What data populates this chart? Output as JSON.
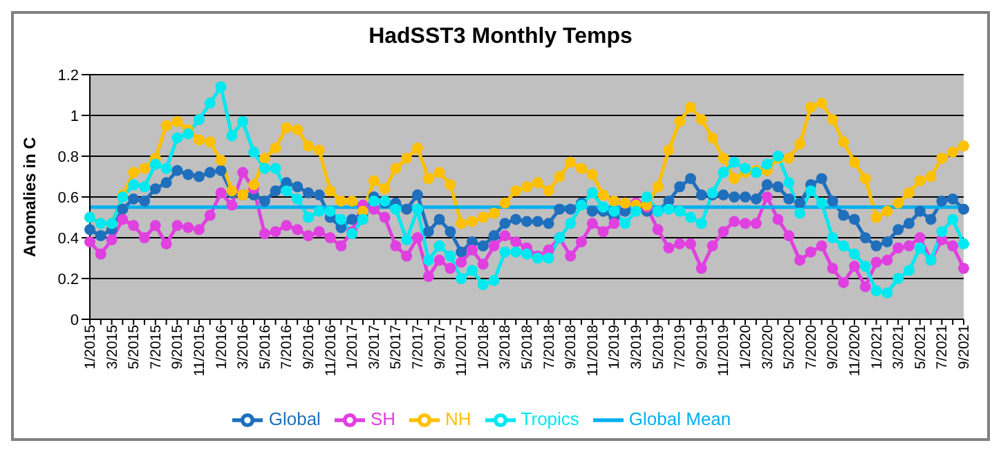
{
  "chart_data": {
    "type": "line",
    "title": "HadSST3 Monthly Temps",
    "ylabel": "Anomalies in C",
    "categories": [
      "1/2015",
      null,
      "3/2015",
      null,
      "5/2015",
      null,
      "7/2015",
      null,
      "9/2015",
      null,
      "11/2015",
      null,
      "1/2016",
      null,
      "3/2016",
      null,
      "5/2016",
      null,
      "7/2016",
      null,
      "9/2016",
      null,
      "11/2016",
      null,
      "1/2017",
      null,
      "3/2017",
      null,
      "5/2017",
      null,
      "7/2017",
      null,
      "9/2017",
      null,
      "11/2017",
      null,
      "1/2018",
      null,
      "3/2018",
      null,
      "5/2018",
      null,
      "7/2018",
      null,
      "9/2018",
      null,
      "11/2018",
      null,
      "1/2019",
      null,
      "3/2019",
      null,
      "5/2019",
      null,
      "7/2019",
      null,
      "9/2019",
      null,
      "11/2019",
      null,
      "1/2020",
      null,
      "3/2020",
      null,
      "5/2020",
      null,
      "7/2020",
      null,
      "9/2020",
      null,
      "11/2020",
      null,
      "1/2021",
      null,
      "3/2021",
      null,
      "5/2021",
      null,
      "7/2021",
      null,
      "9/2021"
    ],
    "series": [
      {
        "name": "Global",
        "color": "#1f6fbd",
        "values": [
          0.44,
          0.41,
          0.44,
          0.54,
          0.59,
          0.58,
          0.64,
          0.67,
          0.73,
          0.71,
          0.7,
          0.72,
          0.73,
          0.62,
          0.61,
          0.61,
          0.58,
          0.63,
          0.67,
          0.65,
          0.62,
          0.61,
          0.5,
          0.45,
          0.49,
          0.52,
          0.6,
          0.57,
          0.57,
          0.54,
          0.61,
          0.43,
          0.49,
          0.43,
          0.33,
          0.38,
          0.36,
          0.41,
          0.47,
          0.49,
          0.48,
          0.48,
          0.47,
          0.54,
          0.54,
          0.57,
          0.53,
          0.53,
          0.5,
          0.53,
          0.55,
          0.53,
          0.53,
          0.58,
          0.65,
          0.69,
          0.61,
          0.61,
          0.61,
          0.6,
          0.6,
          0.59,
          0.66,
          0.65,
          0.59,
          0.57,
          0.66,
          0.69,
          0.58,
          0.51,
          0.49,
          0.4,
          0.36,
          0.38,
          0.44,
          0.47,
          0.53,
          0.49,
          0.58,
          0.59,
          0.54
        ]
      },
      {
        "name": "SH",
        "color": "#e040e0",
        "values": [
          0.38,
          0.32,
          0.39,
          0.49,
          0.46,
          0.4,
          0.46,
          0.37,
          0.46,
          0.45,
          0.44,
          0.51,
          0.62,
          0.56,
          0.72,
          0.64,
          0.42,
          0.43,
          0.46,
          0.44,
          0.41,
          0.43,
          0.4,
          0.36,
          0.43,
          0.56,
          0.54,
          0.5,
          0.36,
          0.31,
          0.4,
          0.21,
          0.29,
          0.25,
          0.28,
          0.34,
          0.27,
          0.36,
          0.41,
          0.38,
          0.35,
          0.31,
          0.34,
          0.4,
          0.31,
          0.38,
          0.47,
          0.43,
          0.47,
          0.57,
          0.57,
          0.55,
          0.44,
          0.35,
          0.37,
          0.37,
          0.25,
          0.36,
          0.43,
          0.48,
          0.47,
          0.47,
          0.6,
          0.49,
          0.41,
          0.29,
          0.33,
          0.36,
          0.25,
          0.18,
          0.26,
          0.16,
          0.28,
          0.29,
          0.35,
          0.36,
          0.4,
          0.29,
          0.39,
          0.36,
          0.25
        ]
      },
      {
        "name": "NH",
        "color": "#ffc000",
        "values": [
          0.5,
          0.47,
          0.47,
          0.61,
          0.72,
          0.74,
          0.79,
          0.95,
          0.97,
          0.93,
          0.88,
          0.87,
          0.78,
          0.63,
          0.61,
          0.66,
          0.79,
          0.84,
          0.94,
          0.93,
          0.85,
          0.83,
          0.63,
          0.58,
          0.58,
          0.53,
          0.68,
          0.64,
          0.74,
          0.79,
          0.84,
          0.69,
          0.72,
          0.66,
          0.47,
          0.48,
          0.5,
          0.52,
          0.57,
          0.63,
          0.65,
          0.67,
          0.63,
          0.7,
          0.77,
          0.74,
          0.71,
          0.61,
          0.58,
          0.57,
          0.56,
          0.56,
          0.65,
          0.83,
          0.97,
          1.04,
          0.98,
          0.89,
          0.79,
          0.69,
          0.72,
          0.73,
          0.73,
          0.79,
          0.79,
          0.86,
          1.04,
          1.06,
          0.98,
          0.87,
          0.77,
          0.69,
          0.5,
          0.53,
          0.57,
          0.62,
          0.68,
          0.7,
          0.79,
          0.82,
          0.85
        ]
      },
      {
        "name": "Tropics",
        "color": "#00e8f0",
        "values": [
          0.5,
          0.47,
          0.47,
          0.6,
          0.66,
          0.65,
          0.76,
          0.74,
          0.89,
          0.91,
          0.98,
          1.06,
          1.14,
          0.9,
          0.97,
          0.82,
          0.74,
          0.74,
          0.63,
          0.59,
          0.5,
          0.53,
          0.53,
          0.49,
          0.42,
          0.49,
          0.58,
          0.58,
          0.54,
          0.39,
          0.54,
          0.29,
          0.36,
          0.31,
          0.2,
          0.24,
          0.17,
          0.19,
          0.33,
          0.33,
          0.32,
          0.3,
          0.3,
          0.4,
          0.47,
          0.56,
          0.62,
          0.55,
          0.53,
          0.47,
          0.53,
          0.6,
          0.53,
          0.54,
          0.53,
          0.5,
          0.47,
          0.62,
          0.72,
          0.77,
          0.74,
          0.72,
          0.76,
          0.8,
          0.67,
          0.52,
          0.63,
          0.57,
          0.4,
          0.36,
          0.32,
          0.26,
          0.14,
          0.13,
          0.2,
          0.24,
          0.35,
          0.29,
          0.43,
          0.49,
          0.37
        ]
      },
      {
        "name": "Global Mean",
        "color": "#00b0f0",
        "marker": "none",
        "values": [
          0.55,
          0.55,
          0.55,
          0.55,
          0.55,
          0.55,
          0.55,
          0.55,
          0.55,
          0.55,
          0.55,
          0.55,
          0.55,
          0.55,
          0.55,
          0.55,
          0.55,
          0.55,
          0.55,
          0.55,
          0.55,
          0.55,
          0.55,
          0.55,
          0.55,
          0.55,
          0.55,
          0.55,
          0.55,
          0.55,
          0.55,
          0.55,
          0.55,
          0.55,
          0.55,
          0.55,
          0.55,
          0.55,
          0.55,
          0.55,
          0.55,
          0.55,
          0.55,
          0.55,
          0.55,
          0.55,
          0.55,
          0.55,
          0.55,
          0.55,
          0.55,
          0.55,
          0.55,
          0.55,
          0.55,
          0.55,
          0.55,
          0.55,
          0.55,
          0.55,
          0.55,
          0.55,
          0.55,
          0.55,
          0.55,
          0.55,
          0.55,
          0.55,
          0.55,
          0.55,
          0.55,
          0.55,
          0.55,
          0.55,
          0.55,
          0.55,
          0.55,
          0.55,
          0.55,
          0.55,
          0.55
        ]
      }
    ],
    "ylim": [
      0,
      1.2
    ],
    "yticks": [
      0,
      0.2,
      0.4,
      0.6,
      0.8,
      1,
      1.2
    ],
    "grid": "y",
    "legend": "bottom",
    "marker": "circle"
  }
}
